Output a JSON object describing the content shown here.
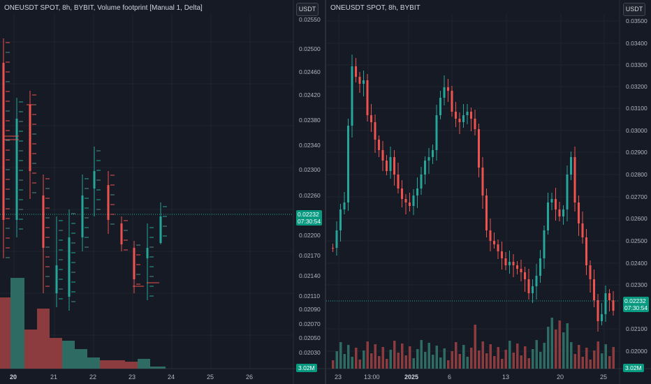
{
  "left_chart": {
    "legend": "ONEUSDT SPOT, 8h, BYBIT, Volume footprint [Manual 1, Delta]",
    "unit": "USDT",
    "price_labels": [
      "0.02550",
      "0.02500",
      "0.02460",
      "0.02420",
      "0.02380",
      "0.02340",
      "0.02300",
      "0.02260",
      "0.02200",
      "0.02170",
      "0.02140",
      "0.02110",
      "0.02090",
      "0.02070",
      "0.02050",
      "0.02030"
    ],
    "last_price": "0.02232",
    "countdown": "07:30:54",
    "volume_badge": "3.02M",
    "time_labels": [
      "20",
      "21",
      "22",
      "23",
      "24",
      "25",
      "26"
    ],
    "colors": {
      "up": "#26a69a",
      "down": "#ef5350",
      "vol_up": "#2e6b63",
      "vol_down": "#8c3b3f"
    }
  },
  "right_chart": {
    "legend": "ONEUSDT SPOT, 8h, BYBIT",
    "unit": "USDT",
    "price_labels": [
      "0.03500",
      "0.03400",
      "0.03300",
      "0.03200",
      "0.03100",
      "0.03000",
      "0.02900",
      "0.02800",
      "0.02700",
      "0.02600",
      "0.02500",
      "0.02400",
      "0.02300",
      "0.02100",
      "0.02000"
    ],
    "last_price": "0.02232",
    "countdown": "07:30:54",
    "volume_badge": "3.02M",
    "time_labels": [
      "23",
      "13:00",
      "2025",
      "6",
      "13",
      "20",
      "25"
    ]
  }
}
